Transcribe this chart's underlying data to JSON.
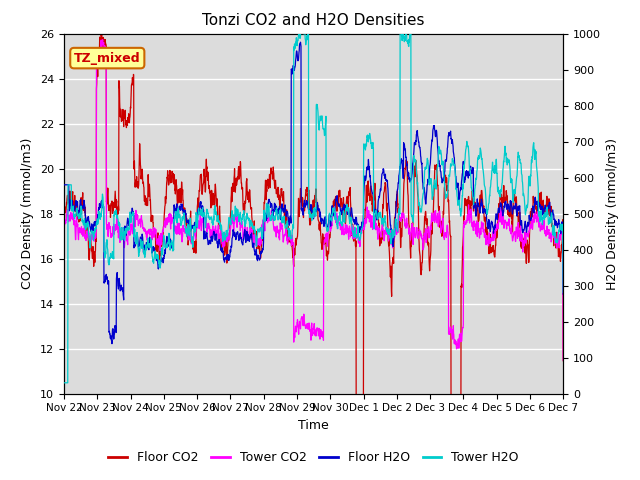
{
  "title": "Tonzi CO2 and H2O Densities",
  "xlabel": "Time",
  "ylabel_left": "CO2 Density (mmol/m3)",
  "ylabel_right": "H2O Density (mmol/m3)",
  "ylim_left": [
    10,
    26
  ],
  "ylim_right": [
    0,
    1000
  ],
  "yticks_left": [
    10,
    12,
    14,
    16,
    18,
    20,
    22,
    24,
    26
  ],
  "yticks_right": [
    0,
    100,
    200,
    300,
    400,
    500,
    600,
    700,
    800,
    900,
    1000
  ],
  "xtick_labels": [
    "Nov 22",
    "Nov 23",
    "Nov 24",
    "Nov 25",
    "Nov 26",
    "Nov 27",
    "Nov 28",
    "Nov 29",
    "Nov 30",
    "Dec 1",
    "Dec 2",
    "Dec 3",
    "Dec 4",
    "Dec 5",
    "Dec 6",
    "Dec 7"
  ],
  "annotation_text": "TZ_mixed",
  "annotation_color": "#cc0000",
  "annotation_bg": "#ffff99",
  "annotation_edge": "#cc6600",
  "colors": {
    "floor_co2": "#cc0000",
    "tower_co2": "#ff00ff",
    "floor_h2o": "#0000cc",
    "tower_h2o": "#00cccc"
  },
  "legend_labels": [
    "Floor CO2",
    "Tower CO2",
    "Floor H2O",
    "Tower H2O"
  ],
  "fig_bg_color": "#dcdcdc",
  "plot_bg_color": "#dcdcdc",
  "legend_bg_color": "#ffffff",
  "grid_color": "#ffffff",
  "seed": 42,
  "n_points": 2000,
  "title_fontsize": 11,
  "axis_fontsize": 9,
  "tick_fontsize": 8
}
